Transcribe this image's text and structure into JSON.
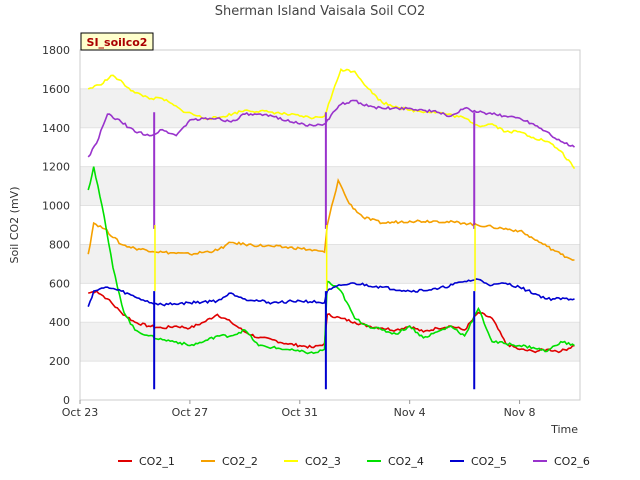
{
  "chart_data": {
    "type": "line",
    "title": "Sherman Island Vaisala Soil CO2",
    "xlabel": "Time",
    "ylabel": "Soil CO2 (mV)",
    "badge": "SI_soilco2",
    "ylim": [
      0,
      1800
    ],
    "yticks": [
      0,
      200,
      400,
      600,
      800,
      1000,
      1200,
      1400,
      1600,
      1800
    ],
    "xlim": [
      "Oct 23",
      "Nov 10"
    ],
    "xticks": [
      {
        "date": "Oct 23",
        "label": "Oct 23"
      },
      {
        "date": "Oct 27",
        "label": "Oct 27"
      },
      {
        "date": "Oct 31",
        "label": "Oct 31"
      },
      {
        "date": "Nov 4",
        "label": "Nov 4"
      },
      {
        "date": "Nov 8",
        "label": "Nov 8"
      }
    ],
    "grid": "horizontal bands",
    "legend_position": "bottom",
    "series": [
      {
        "name": "CO2_1",
        "color": "#e00000",
        "x": [
          "Oct 23.3",
          "Oct 23.6",
          "Oct 24",
          "Oct 24.5",
          "Oct 25",
          "Oct 25.5",
          "Oct 26",
          "Oct 26.5",
          "Oct 27",
          "Oct 27.5",
          "Oct 28",
          "Oct 28.5",
          "Oct 29",
          "Oct 29.5",
          "Oct 30",
          "Oct 30.5",
          "Oct 31",
          "Oct 31.5",
          "Oct 31.9",
          "Nov 1",
          "Nov 1.5",
          "Nov 2",
          "Nov 2.5",
          "Nov 3",
          "Nov 3.5",
          "Nov 4",
          "Nov 4.5",
          "Nov 5",
          "Nov 5.5",
          "Nov 6",
          "Nov 6.5",
          "Nov 7",
          "Nov 7.5",
          "Nov 8",
          "Nov 8.5",
          "Nov 9",
          "Nov 9.5",
          "Nov 10"
        ],
        "y": [
          550,
          560,
          520,
          450,
          400,
          380,
          370,
          380,
          370,
          400,
          440,
          400,
          350,
          320,
          310,
          290,
          280,
          270,
          290,
          440,
          420,
          400,
          380,
          370,
          360,
          380,
          350,
          370,
          380,
          360,
          450,
          420,
          290,
          260,
          250,
          260,
          250,
          280
        ]
      },
      {
        "name": "CO2_2",
        "color": "#f5a000",
        "x": [
          "Oct 23.3",
          "Oct 23.5",
          "Oct 23.9",
          "Oct 24.5",
          "Oct 25",
          "Oct 26",
          "Oct 27",
          "Oct 28",
          "Oct 28.5",
          "Oct 29",
          "Oct 30",
          "Oct 31",
          "Oct 31.9",
          "Nov 1",
          "Nov 1.4",
          "Nov 1.8",
          "Nov 2.3",
          "Nov 3",
          "Nov 4",
          "Nov 5",
          "Nov 6",
          "Nov 7",
          "Nov 8",
          "Nov 8.5",
          "Nov 9",
          "Nov 9.5",
          "Nov 10"
        ],
        "y": [
          750,
          910,
          880,
          800,
          780,
          760,
          750,
          770,
          810,
          800,
          790,
          780,
          760,
          900,
          1130,
          1010,
          940,
          910,
          920,
          920,
          910,
          890,
          870,
          830,
          790,
          750,
          720
        ]
      },
      {
        "name": "CO2_3",
        "color": "#ffff00",
        "x": [
          "Oct 23.3",
          "Oct 23.7",
          "Oct 24.2",
          "Oct 25",
          "Oct 25.6",
          "Oct 26",
          "Oct 26.7",
          "Oct 27.5",
          "Oct 28",
          "Oct 29",
          "Oct 30",
          "Oct 31",
          "Oct 31.5",
          "Oct 31.9",
          "Nov 1.5",
          "Nov 2",
          "Nov 2.5",
          "Nov 3",
          "Nov 3.5",
          "Nov 4",
          "Nov 5",
          "Nov 6",
          "Nov 6.5",
          "Nov 7",
          "Nov 7.5",
          "Nov 8",
          "Nov 8.5",
          "Nov 9",
          "Nov 9.5",
          "Nov 10"
        ],
        "y": [
          1600,
          1620,
          1670,
          1580,
          1550,
          1550,
          1490,
          1450,
          1450,
          1490,
          1480,
          1460,
          1450,
          1460,
          1700,
          1690,
          1600,
          1530,
          1510,
          1490,
          1480,
          1450,
          1410,
          1420,
          1380,
          1380,
          1350,
          1330,
          1280,
          1190
        ]
      },
      {
        "name": "CO2_4",
        "color": "#00e000",
        "x": [
          "Oct 23.3",
          "Oct 23.5",
          "Oct 23.8",
          "Oct 24.2",
          "Oct 24.6",
          "Oct 25",
          "Oct 25.5",
          "Oct 26",
          "Oct 26.5",
          "Oct 27",
          "Oct 27.5",
          "Oct 28",
          "Oct 28.5",
          "Oct 29",
          "Oct 29.5",
          "Oct 30",
          "Oct 30.5",
          "Oct 31",
          "Oct 31.5",
          "Oct 31.9",
          "Nov 1",
          "Nov 1.5",
          "Nov 2",
          "Nov 2.5",
          "Nov 3",
          "Nov 3.5",
          "Nov 4",
          "Nov 4.5",
          "Nov 5",
          "Nov 5.5",
          "Nov 6",
          "Nov 6.5",
          "Nov 7",
          "Nov 7.5",
          "Nov 8",
          "Nov 8.5",
          "Nov 9",
          "Nov 9.5",
          "Nov 10"
        ],
        "y": [
          1080,
          1200,
          1000,
          680,
          450,
          360,
          330,
          310,
          300,
          280,
          300,
          330,
          330,
          360,
          280,
          270,
          260,
          250,
          240,
          260,
          610,
          560,
          420,
          380,
          360,
          340,
          380,
          320,
          350,
          380,
          330,
          470,
          300,
          290,
          280,
          270,
          250,
          300,
          280
        ]
      },
      {
        "name": "CO2_5",
        "color": "#0000d0",
        "x": [
          "Oct 23.3",
          "Oct 23.5",
          "Oct 24",
          "Oct 24.5",
          "Oct 25",
          "Oct 25.6",
          "Oct 26",
          "Oct 27",
          "Oct 28",
          "Oct 28.5",
          "Oct 29",
          "Oct 30",
          "Oct 31",
          "Oct 31.9",
          "Nov 1",
          "Nov 1.5",
          "Nov 2",
          "Nov 3",
          "Nov 4",
          "Nov 5",
          "Nov 6",
          "Nov 6.5",
          "Nov 7",
          "Nov 7.5",
          "Nov 8",
          "Nov 9",
          "Nov 10"
        ],
        "y": [
          480,
          560,
          580,
          560,
          530,
          500,
          490,
          500,
          510,
          550,
          520,
          500,
          510,
          500,
          560,
          590,
          600,
          580,
          560,
          570,
          610,
          620,
          590,
          600,
          580,
          520,
          520
        ]
      },
      {
        "name": "CO2_6",
        "color": "#9933cc",
        "x": [
          "Oct 23.3",
          "Oct 23.6",
          "Oct 24",
          "Oct 24.5",
          "Oct 25",
          "Oct 25.6",
          "Oct 26",
          "Oct 26.5",
          "Oct 27",
          "Oct 28",
          "Oct 28.5",
          "Oct 29",
          "Oct 30",
          "Oct 31",
          "Oct 31.5",
          "Oct 31.9",
          "Nov 1",
          "Nov 1.5",
          "Nov 2",
          "Nov 2.5",
          "Nov 3",
          "Nov 4",
          "Nov 5",
          "Nov 5.5",
          "Nov 6",
          "Nov 6.5",
          "Nov 7",
          "Nov 7.5",
          "Nov 8",
          "Nov 8.5",
          "Nov 9",
          "Nov 9.5",
          "Nov 10"
        ],
        "y": [
          1250,
          1320,
          1470,
          1430,
          1380,
          1360,
          1390,
          1360,
          1440,
          1450,
          1430,
          1470,
          1460,
          1420,
          1410,
          1420,
          1440,
          1520,
          1540,
          1510,
          1500,
          1500,
          1480,
          1460,
          1500,
          1480,
          1470,
          1460,
          1450,
          1420,
          1380,
          1330,
          1300
        ]
      }
    ],
    "dropouts": [
      {
        "date": "Oct 25.7",
        "series": [
          "CO2_5",
          "CO2_6",
          "CO2_3"
        ]
      },
      {
        "date": "Oct 31.95",
        "series": [
          "CO2_5",
          "CO2_6",
          "CO2_3"
        ]
      },
      {
        "date": "Nov 6.35",
        "series": [
          "CO2_5",
          "CO2_6",
          "CO2_3"
        ]
      }
    ]
  }
}
